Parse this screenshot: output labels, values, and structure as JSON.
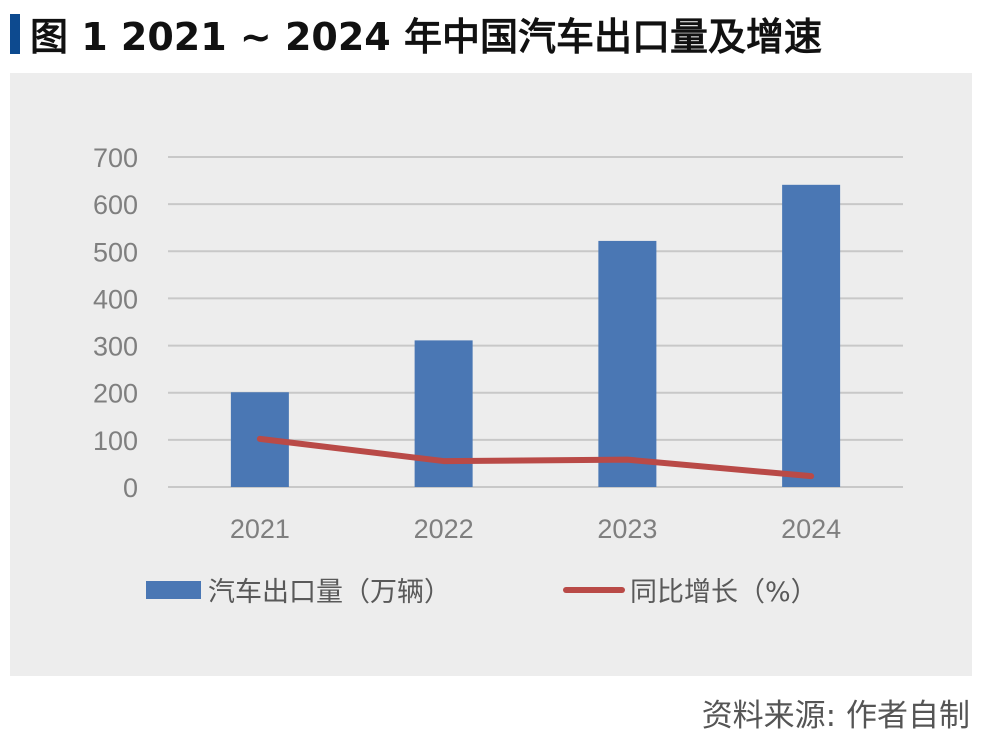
{
  "title": "图 1 2021 ~ 2024 年中国汽车出口量及增速",
  "source": "资料来源: 作者自制",
  "colors": {
    "bar": "#4a77b4",
    "line": "#b94a47",
    "grid": "#c8c8c8",
    "title_bar": "#0d4a8f"
  },
  "chart_data": {
    "type": "bar",
    "categories": [
      "2021",
      "2022",
      "2023",
      "2024"
    ],
    "series": [
      {
        "name": "汽车出口量（万辆）",
        "type": "bar",
        "values": [
          201,
          311,
          522,
          641
        ]
      },
      {
        "name": "同比增长（%）",
        "type": "line",
        "values": [
          102,
          55,
          58,
          23
        ]
      }
    ],
    "yticks": [
      "0",
      "100",
      "200",
      "300",
      "400",
      "500",
      "600",
      "700"
    ],
    "ylim": [
      0,
      700
    ],
    "grid": true,
    "legend": "bottom"
  }
}
